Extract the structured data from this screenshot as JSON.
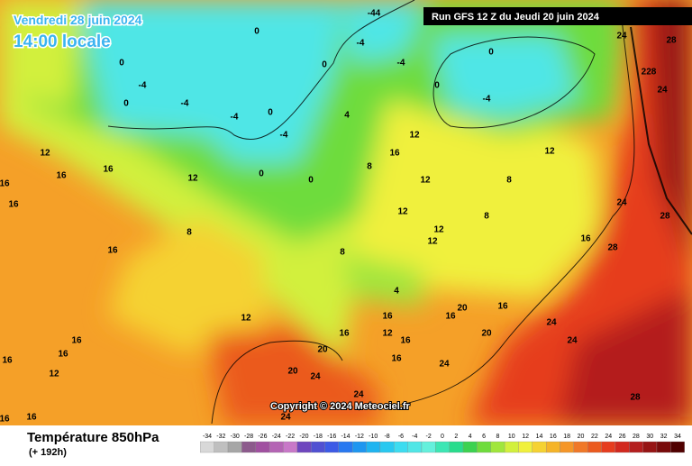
{
  "header": {
    "date": "Vendredi 28 juin 2024",
    "time": "14:00 locale",
    "run": "Run GFS 12 Z du Jeudi 20 juin 2024"
  },
  "footer": {
    "title": "Température 850hPa",
    "lead": "(+ 192h)",
    "copyright": "Copyright © 2024 Meteociel.fr"
  },
  "legend": {
    "labels": [
      -34,
      -32,
      -30,
      -28,
      -26,
      -24,
      -22,
      -20,
      -18,
      -16,
      -14,
      -12,
      -10,
      -8,
      -6,
      -4,
      -2,
      0,
      2,
      4,
      6,
      8,
      10,
      12,
      14,
      16,
      18,
      20,
      22,
      24,
      26,
      28,
      30,
      32,
      34
    ],
    "colors": [
      "#d8d8d8",
      "#bfbfbf",
      "#a6a6a6",
      "#8c5a8c",
      "#a050a0",
      "#b464b4",
      "#c878c8",
      "#6e46be",
      "#5050d2",
      "#3c5ae6",
      "#2878f0",
      "#1e96f0",
      "#1eb4f0",
      "#28c8f0",
      "#3cdcf0",
      "#50e6e6",
      "#64f0dc",
      "#3ce6b4",
      "#28dc8c",
      "#3cd250",
      "#6edc3c",
      "#a0e63c",
      "#d2f03c",
      "#f0f03c",
      "#f5d232",
      "#f5b428",
      "#f59628",
      "#f07828",
      "#eb5a1e",
      "#e63c1e",
      "#d2281e",
      "#b41e1e",
      "#961414",
      "#780a0a",
      "#500000"
    ]
  },
  "contour_labels": [
    "24",
    "28",
    "228",
    "24",
    "24",
    "28",
    "28",
    "16",
    "8",
    "12",
    "0",
    "-4",
    "0",
    "-4",
    "-44",
    "-4",
    "0",
    "0",
    "0",
    "-4",
    "0",
    "0",
    "-4",
    "-4",
    "-4",
    "0",
    "0",
    "4",
    "8",
    "16",
    "12",
    "12",
    "12",
    "12",
    "12",
    "8",
    "16",
    "16",
    "12",
    "16",
    "16",
    "12",
    "8",
    "16",
    "12",
    "4",
    "16",
    "16",
    "20",
    "16",
    "20",
    "24",
    "24",
    "24",
    "16",
    "20",
    "20",
    "24",
    "24",
    "24",
    "28",
    "16",
    "12",
    "16",
    "16",
    "16",
    "12",
    "16",
    "16",
    "16",
    "8"
  ]
}
